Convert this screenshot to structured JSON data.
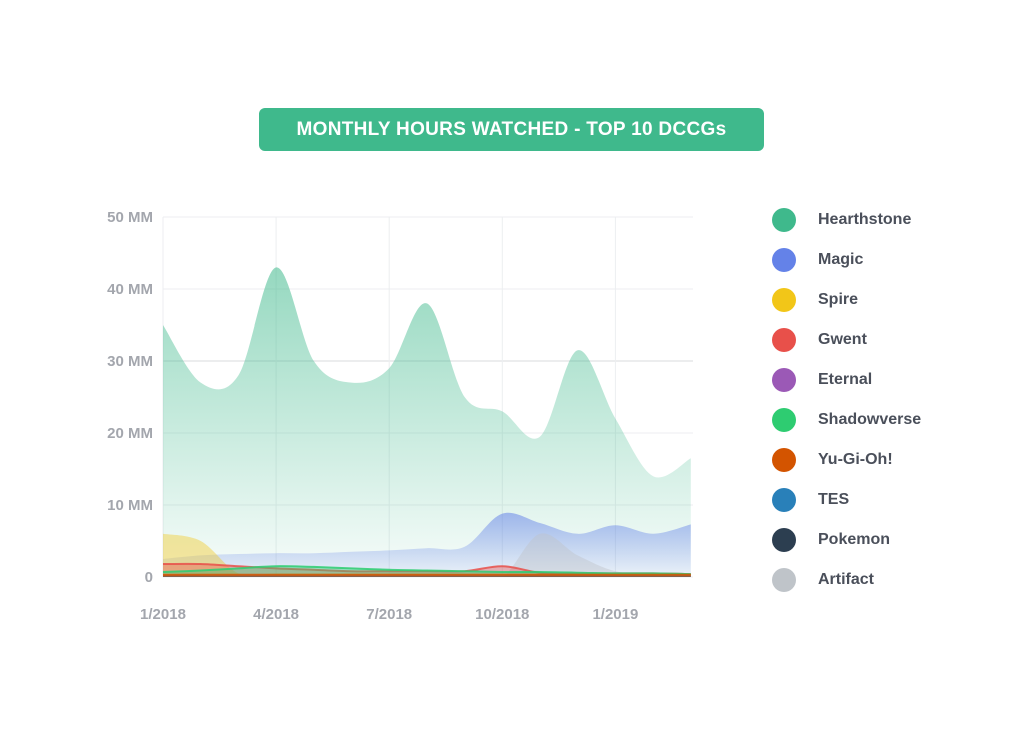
{
  "chart_data": {
    "type": "area",
    "title": "MONTHLY HOURS WATCHED - TOP 10 DCCGs",
    "xlabel": "",
    "ylabel": "",
    "x": [
      "1/2018",
      "2/2018",
      "3/2018",
      "4/2018",
      "5/2018",
      "6/2018",
      "7/2018",
      "8/2018",
      "9/2018",
      "10/2018",
      "11/2018",
      "12/2018",
      "1/2019",
      "2/2019",
      "3/2019"
    ],
    "x_ticks": [
      "1/2018",
      "4/2018",
      "7/2018",
      "10/2018",
      "1/2019"
    ],
    "y_ticks": [
      {
        "value": 0,
        "label": "0"
      },
      {
        "value": 10,
        "label": "10 MM"
      },
      {
        "value": 20,
        "label": "20 MM"
      },
      {
        "value": 30,
        "label": "30 MM"
      },
      {
        "value": 40,
        "label": "40 MM"
      },
      {
        "value": 50,
        "label": "50 MM"
      }
    ],
    "ylim": [
      0,
      50
    ],
    "units": "millions of hours",
    "series": [
      {
        "name": "Hearthstone",
        "color": "#3fb98c",
        "values": [
          35,
          27,
          28,
          43,
          30,
          27,
          29,
          38,
          25,
          23,
          19.5,
          31.5,
          22,
          14,
          16.5
        ]
      },
      {
        "name": "Magic",
        "color": "#6482e8",
        "values": [
          2.5,
          3,
          3.2,
          3.3,
          3.3,
          3.5,
          3.7,
          4,
          4.2,
          8.8,
          7.5,
          6,
          7.2,
          6,
          7.3
        ]
      },
      {
        "name": "Spire",
        "color": "#f2c618",
        "values": [
          6,
          5,
          0.5,
          0.5,
          0.5,
          0.5,
          0.5,
          0.5,
          0.5,
          0.5,
          0.5,
          0.5,
          0.5,
          0.5,
          0.5
        ]
      },
      {
        "name": "Gwent",
        "color": "#e8504a",
        "values": [
          1.8,
          1.8,
          1.5,
          1.2,
          1,
          0.8,
          0.8,
          0.8,
          0.8,
          1.5,
          0.6,
          0.5,
          0.5,
          0.5,
          0.4
        ]
      },
      {
        "name": "Eternal",
        "color": "#9b59b6",
        "values": [
          0.3,
          0.3,
          0.3,
          0.3,
          0.3,
          0.3,
          0.3,
          0.3,
          0.3,
          0.3,
          0.3,
          0.3,
          0.3,
          0.3,
          0.3
        ]
      },
      {
        "name": "Shadowverse",
        "color": "#2ecc71",
        "values": [
          0.7,
          0.9,
          1.2,
          1.5,
          1.4,
          1.2,
          1,
          0.9,
          0.8,
          0.7,
          0.7,
          0.6,
          0.5,
          0.5,
          0.4
        ]
      },
      {
        "name": "Yu-Gi-Oh!",
        "color": "#d35400",
        "values": [
          0.3,
          0.3,
          0.3,
          0.3,
          0.3,
          0.3,
          0.3,
          0.3,
          0.3,
          0.3,
          0.3,
          0.3,
          0.3,
          0.3,
          0.3
        ]
      },
      {
        "name": "TES",
        "color": "#2980b9",
        "values": [
          0.2,
          0.2,
          0.2,
          0.2,
          0.2,
          0.2,
          0.2,
          0.2,
          0.2,
          0.2,
          0.2,
          0.2,
          0.2,
          0.2,
          0.2
        ]
      },
      {
        "name": "Pokemon",
        "color": "#2c3e50",
        "values": [
          0.2,
          0.2,
          0.2,
          0.2,
          0.2,
          0.2,
          0.2,
          0.2,
          0.2,
          0.2,
          0.2,
          0.2,
          0.2,
          0.2,
          0.2
        ]
      },
      {
        "name": "Artifact",
        "color": "#bfc4c9",
        "values": [
          0,
          0,
          0,
          0,
          0,
          0,
          0,
          0,
          0,
          0,
          6,
          3,
          0.8,
          0.5,
          0.4
        ]
      }
    ],
    "legend_position": "right"
  }
}
